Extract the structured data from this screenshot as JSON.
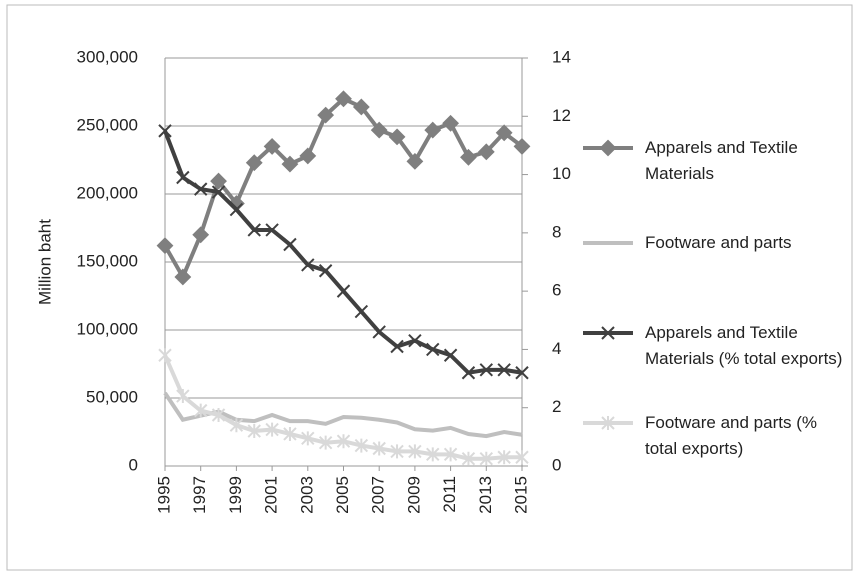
{
  "chart_data": {
    "type": "line",
    "y_label": "Million baht",
    "x": [
      1995,
      1996,
      1997,
      1998,
      1999,
      2000,
      2001,
      2002,
      2003,
      2004,
      2005,
      2006,
      2007,
      2008,
      2009,
      2010,
      2011,
      2012,
      2013,
      2014,
      2015
    ],
    "xlim": [
      1995,
      2015
    ],
    "xticks": [
      1995,
      1997,
      1999,
      2001,
      2003,
      2005,
      2007,
      2009,
      2011,
      2013,
      2015
    ],
    "ylim": [
      0,
      300000
    ],
    "yticks": [
      {
        "value": 0,
        "label": "0"
      },
      {
        "value": 50000,
        "label": "50,000"
      },
      {
        "value": 100000,
        "label": "100,000"
      },
      {
        "value": 150000,
        "label": "150,000"
      },
      {
        "value": 200000,
        "label": "200,000"
      },
      {
        "value": 250000,
        "label": "250,000"
      },
      {
        "value": 300000,
        "label": "300,000"
      }
    ],
    "y2lim": [
      0,
      14
    ],
    "y2ticks": [
      0,
      2,
      4,
      6,
      8,
      10,
      12,
      14
    ],
    "grid": true,
    "legend": "right",
    "series": [
      {
        "name": "Apparels and Textile Materials",
        "color": "#7f7f7f",
        "marker": "diamond",
        "values": [
          162000,
          139000,
          170000,
          209500,
          193000,
          223000,
          235000,
          222000,
          228000,
          258000,
          270000,
          264000,
          247000,
          242000,
          224000,
          247000,
          252000,
          227000,
          231000,
          245000,
          235000
        ]
      },
      {
        "name": "Footware and parts",
        "color": "#bfbfbf",
        "marker": "none",
        "values": [
          53700,
          34000,
          37000,
          40000,
          34000,
          33000,
          37500,
          33000,
          33000,
          31000,
          36000,
          35500,
          34000,
          32000,
          27000,
          26000,
          28000,
          23500,
          22000,
          25000,
          23000
        ]
      },
      {
        "name": "Apparels and Textile Materials (% total exports)",
        "color": "#404040",
        "marker": "x",
        "axis": "y2",
        "values": [
          11.5,
          9.9,
          9.5,
          9.4,
          8.8,
          8.1,
          8.1,
          7.6,
          6.9,
          6.7,
          6.0,
          5.3,
          4.6,
          4.1,
          4.3,
          4.0,
          3.8,
          3.2,
          3.3,
          3.3,
          3.2
        ]
      },
      {
        "name": "Footware and parts (% total exports)",
        "color": "#d9d9d9",
        "marker": "star",
        "axis": "y2",
        "values": [
          3.8,
          2.4,
          1.9,
          1.75,
          1.4,
          1.2,
          1.25,
          1.1,
          0.95,
          0.8,
          0.85,
          0.7,
          0.6,
          0.5,
          0.5,
          0.4,
          0.4,
          0.25,
          0.25,
          0.3,
          0.3
        ]
      }
    ]
  }
}
